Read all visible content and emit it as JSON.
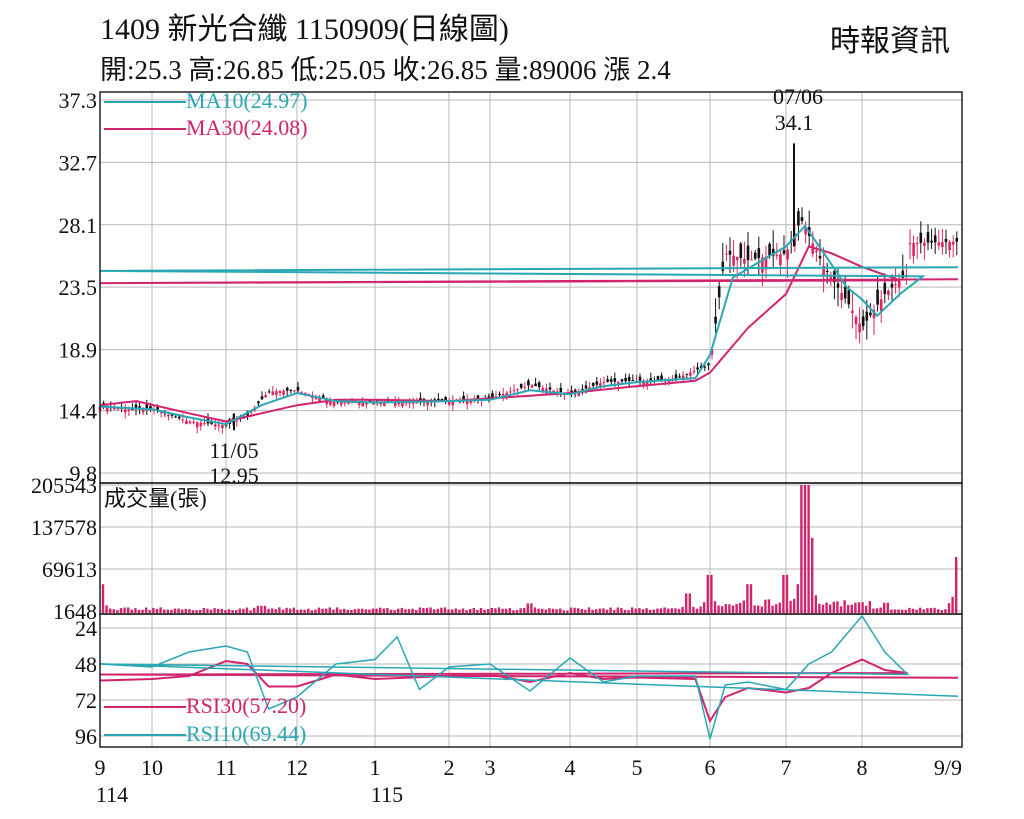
{
  "header": {
    "title": "1409  新光合纖 1150909(日線圖)",
    "source": "時報資訊",
    "summary": "開:25.3 高:26.85 低:25.05 收:26.85 量:89006 漲 2.4"
  },
  "colors": {
    "up": "#e0245e",
    "down": "#111111",
    "ma10": "#2aa7b4",
    "ma30": "#d0246e",
    "rsi30": "#d0246e",
    "rsi10": "#2aa7b4",
    "volume": "#d0246e",
    "grid": "#b8b8b8"
  },
  "chart_data": [
    {
      "type": "candlestick",
      "x_labels": [
        "9",
        "10",
        "11",
        "12",
        "1",
        "2",
        "3",
        "4",
        "5",
        "6",
        "7",
        "8",
        "9/9"
      ],
      "x_sublabels": {
        "9": "114",
        "1": "115"
      },
      "y_ticks": [
        "37.3",
        "32.7",
        "28.1",
        "23.5",
        "18.9",
        "14.4",
        "9.8"
      ],
      "ylim": [
        9.8,
        37.3
      ],
      "grid": true,
      "legend": [
        {
          "name": "MA10(24.97)",
          "color": "#2aa7b4"
        },
        {
          "name": "MA30(24.08)",
          "color": "#d0246e"
        }
      ],
      "annotations": [
        {
          "label": "07/06",
          "value": "34.1",
          "date": "2026-07-06"
        },
        {
          "label": "11/05",
          "value": "12.95",
          "date": "2025-11-05"
        }
      ],
      "close_path": [
        [
          "9",
          14.7
        ],
        [
          "9.5",
          14.5
        ],
        [
          "10",
          14.5
        ],
        [
          "10.5",
          13.6
        ],
        [
          "11",
          13.3
        ],
        [
          "11.3",
          14.0
        ],
        [
          "11.6",
          15.8
        ],
        [
          "12",
          15.9
        ],
        [
          "12.5",
          15.0
        ],
        [
          "1",
          15.1
        ],
        [
          "1.5",
          15.0
        ],
        [
          "2",
          15.1
        ],
        [
          "3",
          15.3
        ],
        [
          "3.5",
          16.3
        ],
        [
          "4",
          15.6
        ],
        [
          "4.5",
          16.5
        ],
        [
          "5",
          16.6
        ],
        [
          "5.5",
          16.7
        ],
        [
          "6",
          17.8
        ],
        [
          "6.2",
          26.0
        ],
        [
          "6.5",
          25.5
        ],
        [
          "7",
          26.0
        ],
        [
          "7.2",
          28.5
        ],
        [
          "7.5",
          25.0
        ],
        [
          "7.8",
          22.5
        ],
        [
          "8",
          20.5
        ],
        [
          "8.3",
          23.0
        ],
        [
          "8.6",
          24.5
        ],
        [
          "9",
          25.0
        ],
        [
          "9/9",
          26.85
        ]
      ],
      "ma10_path": [
        [
          "9",
          14.7
        ],
        [
          "10",
          14.5
        ],
        [
          "10.5",
          13.9
        ],
        [
          "11",
          13.4
        ],
        [
          "11.5",
          14.8
        ],
        [
          "12",
          15.7
        ],
        [
          "12.5",
          15.1
        ],
        [
          "1",
          15.0
        ],
        [
          "2",
          15.1
        ],
        [
          "3",
          15.2
        ],
        [
          "3.5",
          15.9
        ],
        [
          "4",
          15.6
        ],
        [
          "4.5",
          16.2
        ],
        [
          "5",
          16.5
        ],
        [
          "5.8",
          16.8
        ],
        [
          "6",
          18.5
        ],
        [
          "6.3",
          24.2
        ],
        [
          "6.6",
          25.2
        ],
        [
          "7",
          26.5
        ],
        [
          "7.25",
          28.0
        ],
        [
          "7.5",
          26.0
        ],
        [
          "7.8",
          23.5
        ],
        [
          "8",
          22.6
        ],
        [
          "8.2",
          21.4
        ],
        [
          "8.5",
          23.0
        ],
        [
          "8.8",
          24.3
        ],
        [
          "9",
          24.7
        ],
        [
          "9/9",
          24.97
        ]
      ],
      "ma30_path": [
        [
          "9",
          14.8
        ],
        [
          "9.7",
          15.1
        ],
        [
          "10.5",
          14.2
        ],
        [
          "11",
          13.6
        ],
        [
          "11.5",
          14.2
        ],
        [
          "12",
          14.8
        ],
        [
          "12.5",
          15.2
        ],
        [
          "1",
          15.2
        ],
        [
          "2",
          15.1
        ],
        [
          "3",
          15.3
        ],
        [
          "3.5",
          15.5
        ],
        [
          "4",
          15.7
        ],
        [
          "5",
          16.2
        ],
        [
          "5.8",
          16.6
        ],
        [
          "6",
          17.2
        ],
        [
          "6.5",
          20.5
        ],
        [
          "7",
          23.0
        ],
        [
          "7.3",
          26.5
        ],
        [
          "7.6",
          26.0
        ],
        [
          "8",
          25.0
        ],
        [
          "8.5",
          24.0
        ],
        [
          "9",
          23.8
        ],
        [
          "9/9",
          24.08
        ]
      ]
    },
    {
      "type": "bar",
      "title": "成交量(張)",
      "y_ticks": [
        "205543",
        "137578",
        "69613",
        "1648"
      ],
      "ylim": [
        1648,
        205543
      ],
      "peaks": [
        {
          "x": "11.5",
          "value": 10000
        },
        {
          "x": "3.5",
          "value": 14000
        },
        {
          "x": "5.7",
          "value": 30000
        },
        {
          "x": "6",
          "value": 60000
        },
        {
          "x": "6.5",
          "value": 45000
        },
        {
          "x": "7",
          "value": 60000
        },
        {
          "x": "7.25",
          "value": 205543
        },
        {
          "x": "7.3",
          "value": 120000
        },
        {
          "x": "8.3",
          "value": 15000
        },
        {
          "x": "9",
          "value": 45000
        },
        {
          "x": "9/9",
          "value": 89006
        }
      ]
    },
    {
      "type": "line",
      "y_ticks": [
        "96",
        "72",
        "48",
        "24"
      ],
      "ylim": [
        14,
        98
      ],
      "legend": [
        {
          "name": "RSI30(57.20)",
          "color": "#d0246e"
        },
        {
          "name": "RSI10(69.44)",
          "color": "#2aa7b4"
        }
      ],
      "series": [
        {
          "name": "RSI30(57.20)",
          "points": [
            [
              "9",
              59
            ],
            [
              "10",
              58
            ],
            [
              "10.5",
              56
            ],
            [
              "11",
              46
            ],
            [
              "11.3",
              48
            ],
            [
              "11.6",
              63
            ],
            [
              "12",
              63
            ],
            [
              "12.5",
              55
            ],
            [
              "1",
              58
            ],
            [
              "2",
              56
            ],
            [
              "3",
              55
            ],
            [
              "3.5",
              60
            ],
            [
              "4",
              54
            ],
            [
              "4.5",
              58
            ],
            [
              "5",
              57
            ],
            [
              "5.8",
              58
            ],
            [
              "6",
              86
            ],
            [
              "6.2",
              70
            ],
            [
              "6.5",
              64
            ],
            [
              "7",
              67
            ],
            [
              "7.3",
              64
            ],
            [
              "7.6",
              54
            ],
            [
              "8",
              45
            ],
            [
              "8.3",
              52
            ],
            [
              "8.6",
              54
            ],
            [
              "9",
              55
            ],
            [
              "9/9",
              57.2
            ]
          ]
        },
        {
          "name": "RSI10(69.44)",
          "points": [
            [
              "9",
              48
            ],
            [
              "10",
              50
            ],
            [
              "10.5",
              40
            ],
            [
              "11",
              36
            ],
            [
              "11.3",
              40
            ],
            [
              "11.6",
              78
            ],
            [
              "12",
              70
            ],
            [
              "12.5",
              48
            ],
            [
              "1",
              45
            ],
            [
              "1.3",
              30
            ],
            [
              "1.6",
              65
            ],
            [
              "2",
              50
            ],
            [
              "3",
              48
            ],
            [
              "3.5",
              66
            ],
            [
              "4",
              44
            ],
            [
              "4.5",
              60
            ],
            [
              "5",
              56
            ],
            [
              "5.8",
              56
            ],
            [
              "6",
              98
            ],
            [
              "6.2",
              62
            ],
            [
              "6.5",
              60
            ],
            [
              "7",
              65
            ],
            [
              "7.3",
              48
            ],
            [
              "7.6",
              40
            ],
            [
              "8",
              16
            ],
            [
              "8.3",
              40
            ],
            [
              "8.6",
              55
            ],
            [
              "9",
              48
            ],
            [
              "9/9",
              69.44
            ]
          ]
        }
      ]
    }
  ]
}
